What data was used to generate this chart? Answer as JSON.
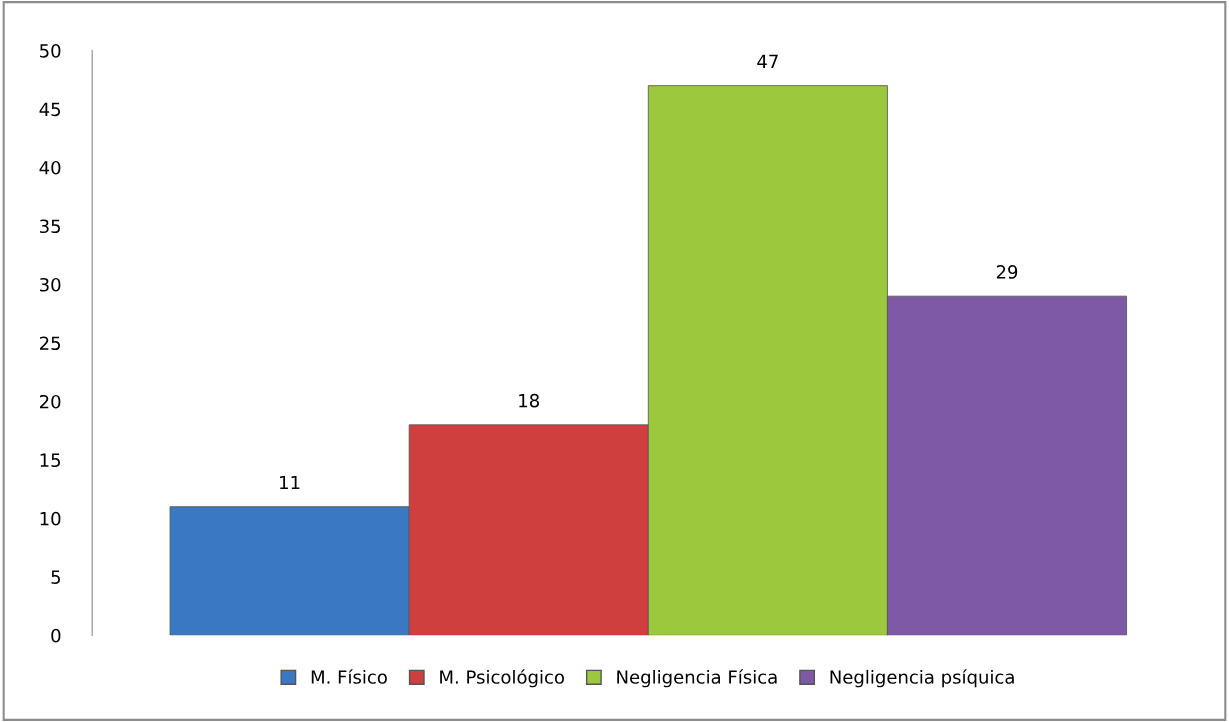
{
  "chart_data": {
    "type": "bar",
    "categories": [
      null
    ],
    "series": [
      {
        "name": "M. Físico",
        "color": "#3b78c4",
        "values": [
          11
        ]
      },
      {
        "name": "M. Psicológico",
        "color": "#cf3f3d",
        "values": [
          18
        ]
      },
      {
        "name": "Negligencia Física",
        "color": "#9cc83e",
        "values": [
          47
        ]
      },
      {
        "name": "Negligencia psíquica",
        "color": "#7d59a6",
        "values": [
          29
        ]
      }
    ],
    "ylim": [
      0,
      50
    ],
    "yticks": [
      0,
      5,
      10,
      15,
      20,
      25,
      30,
      35,
      40,
      45,
      50
    ],
    "data_labels": true,
    "legend": "bottom",
    "grid": false
  }
}
